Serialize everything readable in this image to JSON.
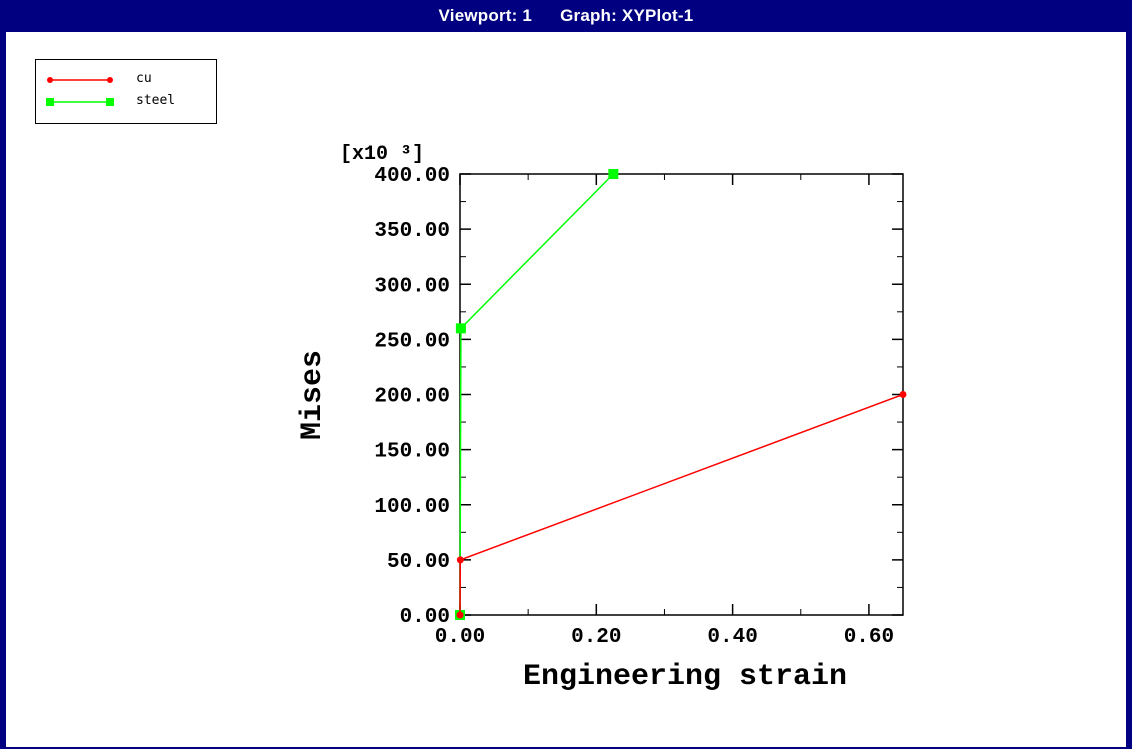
{
  "window": {
    "viewport_label": "Viewport: 1",
    "graph_label": "Graph: XYPlot-1",
    "frame_color": "#000080"
  },
  "legend": {
    "entries": [
      {
        "name": "cu",
        "color": "#ff0000",
        "marker": "circle"
      },
      {
        "name": "steel",
        "color": "#00ff00",
        "marker": "square"
      }
    ]
  },
  "chart_data": {
    "type": "line",
    "xlabel": "Engineering strain",
    "ylabel": "Mises",
    "y_multiplier_label": "[x10 ³]",
    "xlim": [
      0,
      0.65
    ],
    "ylim": [
      0,
      400
    ],
    "x_ticks": [
      "0.00",
      "0.20",
      "0.40",
      "0.60"
    ],
    "y_ticks": [
      "0.00",
      "50.00",
      "100.00",
      "150.00",
      "200.00",
      "250.00",
      "300.00",
      "350.00",
      "400.00"
    ],
    "x_tick_values": [
      0,
      0.2,
      0.4,
      0.6
    ],
    "y_tick_values": [
      0,
      50,
      100,
      150,
      200,
      250,
      300,
      350,
      400
    ],
    "grid": false,
    "legend_position": "top-left",
    "series": [
      {
        "name": "cu",
        "color": "#ff0000",
        "marker": "circle",
        "points": [
          [
            0,
            0
          ],
          [
            0.0005,
            50
          ],
          [
            0.65,
            200
          ]
        ]
      },
      {
        "name": "steel",
        "color": "#00ff00",
        "marker": "square",
        "points": [
          [
            0,
            0
          ],
          [
            0.0013,
            260
          ],
          [
            0.225,
            400
          ]
        ]
      }
    ]
  }
}
